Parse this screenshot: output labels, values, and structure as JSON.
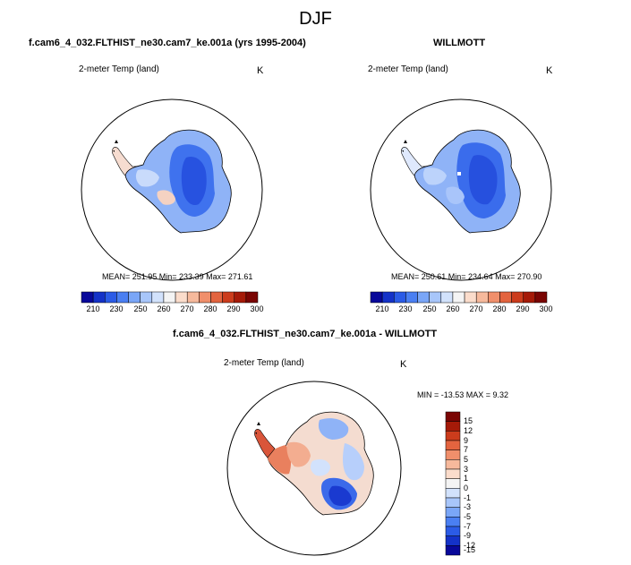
{
  "title": "DJF",
  "panels": [
    {
      "case_title": "f.cam6_4_032.FLTHIST_ne30.cam7_ke.001a (yrs 1995-2004)",
      "variable": "2-meter Temp (land)",
      "units": "K",
      "stats_text": "MEAN= 251.95  Min= 233.39  Max= 271.61",
      "colorbar_ticks": [
        "210",
        "230",
        "250",
        "260",
        "270",
        "280",
        "290",
        "300"
      ]
    },
    {
      "case_title": "WILLMOTT",
      "variable": "2-meter Temp (land)",
      "units": "K",
      "stats_text": "MEAN= 250.61  Min= 234.64  Max= 270.90",
      "colorbar_ticks": [
        "210",
        "230",
        "250",
        "260",
        "270",
        "280",
        "290",
        "300"
      ]
    },
    {
      "case_title": "f.cam6_4_032.FLTHIST_ne30.cam7_ke.001a - WILLMOTT",
      "variable": "2-meter Temp (land)",
      "units": "K",
      "stats_text": "MIN = -13.53 MAX =  9.32",
      "colorbar_ticks": [
        "15",
        "12",
        "9",
        "7",
        "5",
        "3",
        "1",
        "0",
        "-1",
        "-3",
        "-5",
        "-7",
        "-9",
        "-12",
        "-15"
      ]
    }
  ],
  "colors": {
    "temperature_scale": [
      "#08089a",
      "#1432c8",
      "#2b5be6",
      "#4a7ff2",
      "#7aa6f7",
      "#a8c6fa",
      "#d2e2fc",
      "#f4f4f4",
      "#fbdccb",
      "#f6b99c",
      "#f08f6b",
      "#e3643f",
      "#cc3c1c",
      "#a51a08",
      "#7a0503"
    ],
    "difference_scale": [
      "#7a0503",
      "#a51a08",
      "#cc3c1c",
      "#e3643f",
      "#f08f6b",
      "#f6b99c",
      "#fbdccb",
      "#f4f4f4",
      "#d2e2fc",
      "#a8c6fa",
      "#7aa6f7",
      "#4a7ff2",
      "#2b5be6",
      "#1432c8",
      "#08089a"
    ]
  }
}
